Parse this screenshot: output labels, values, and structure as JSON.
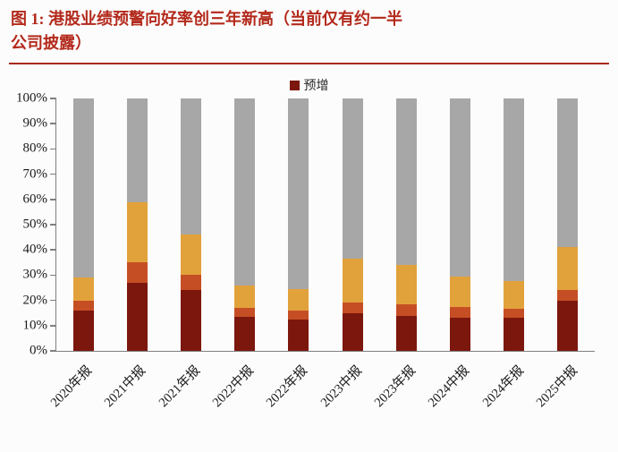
{
  "figure": {
    "title_line1": "图 1:  港股业绩预警向好率创三年新高（当前仅有约一半",
    "title_line2": "公司披露）",
    "title_color": "#b32a1c"
  },
  "legend": [
    {
      "label": "预增",
      "color": "#7c170e"
    }
  ],
  "chart_data": {
    "type": "bar",
    "subtype": "stacked-100-percent",
    "title": "港股业绩预警向好率创三年新高（当前仅有约一半公司披露）",
    "xlabel": "",
    "ylabel": "",
    "ylim": [
      0,
      100
    ],
    "grid": false,
    "legend_position": "top-center",
    "y_ticks": [
      "0%",
      "10%",
      "20%",
      "30%",
      "40%",
      "50%",
      "60%",
      "70%",
      "80%",
      "90%",
      "100%"
    ],
    "categories": [
      "2020年报",
      "2021中报",
      "2021年报",
      "2022中报",
      "2022年报",
      "2023中报",
      "2023年报",
      "2024中报",
      "2024年报",
      "2025中报"
    ],
    "series": [
      {
        "name": "预增",
        "color": "#7c170e",
        "values": [
          16,
          27,
          24,
          13.5,
          12.5,
          15,
          14,
          13,
          13,
          20
        ]
      },
      {
        "name": "unlabeled-orange-red",
        "color": "#c64e24",
        "values": [
          4,
          8,
          6,
          3.5,
          3.5,
          4,
          4.5,
          4.5,
          3.5,
          4
        ]
      },
      {
        "name": "unlabeled-gold",
        "color": "#e2a23b",
        "values": [
          9,
          24,
          16,
          9,
          8.5,
          17.5,
          15.5,
          12,
          11,
          17
        ]
      },
      {
        "name": "unlabeled-gray",
        "color": "#a7a7a7",
        "values": [
          71,
          41,
          54,
          74,
          75.5,
          63.5,
          66,
          70.5,
          72.5,
          59
        ]
      }
    ]
  }
}
